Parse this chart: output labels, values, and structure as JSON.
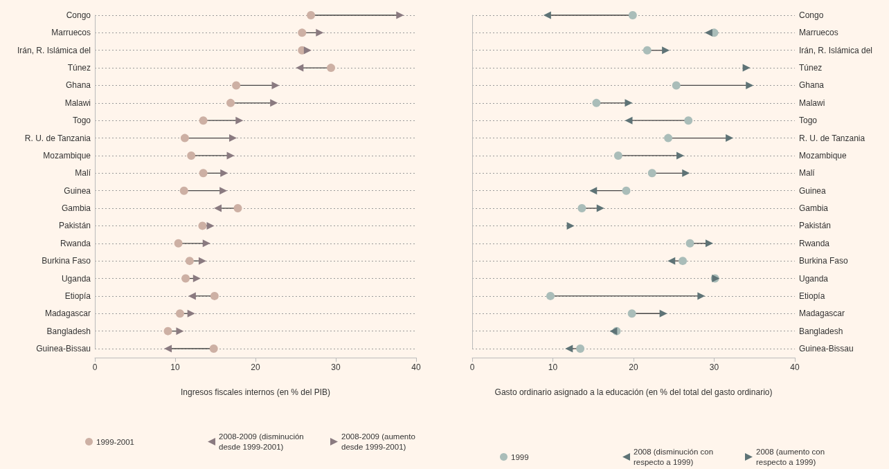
{
  "chart_data": [
    {
      "type": "scatter",
      "categories": [
        "Congo",
        "Marruecos",
        "Irán, R. Islámica del",
        "Túnez",
        "Ghana",
        "Malawi",
        "Togo",
        "R. U. de Tanzania",
        "Mozambique",
        "Malí",
        "Guinea",
        "Gambia",
        "Pakistán",
        "Rwanda",
        "Burkina Faso",
        "Uganda",
        "Etiopía",
        "Madagascar",
        "Bangladesh",
        "Guinea-Bissau"
      ],
      "xlabel": "Ingresos fiscales internos (en % del PIB)",
      "orientation": "horizontal",
      "xlim": [
        0,
        40
      ],
      "xticks": [
        0,
        10,
        20,
        30,
        40
      ],
      "grid": "y",
      "legend": "bottom",
      "series": [
        {
          "name": "1999-2001",
          "color": "#cdb0a4",
          "marker": "circle",
          "values": [
            26.9,
            25.8,
            25.8,
            29.4,
            17.6,
            16.9,
            13.5,
            11.2,
            12.0,
            13.5,
            11.1,
            17.8,
            13.4,
            10.4,
            11.8,
            11.3,
            14.9,
            10.6,
            9.1,
            14.8
          ]
        },
        {
          "name": "2008-2009 (disminución desde 1999-2001)",
          "color": "#8a7a80",
          "marker": "triangle",
          "values": [
            null,
            null,
            null,
            25.5,
            null,
            null,
            null,
            null,
            null,
            null,
            null,
            15.3,
            null,
            null,
            null,
            null,
            12.1,
            null,
            null,
            9.1
          ]
        },
        {
          "name": "2008-2009 (aumento desde 1999-2001)",
          "color": "#8a7a80",
          "marker": "triangle",
          "values": [
            38.0,
            28.0,
            26.5,
            null,
            22.5,
            22.3,
            18.0,
            17.2,
            16.9,
            16.1,
            16.0,
            null,
            14.4,
            13.9,
            13.4,
            12.7,
            null,
            12.0,
            10.6,
            null
          ]
        }
      ]
    },
    {
      "type": "scatter",
      "categories": [
        "Congo",
        "Marruecos",
        "Irán, R. Islámica del",
        "Túnez",
        "Ghana",
        "Malawi",
        "Togo",
        "R. U. de Tanzania",
        "Mozambique",
        "Malí",
        "Guinea",
        "Gambia",
        "Pakistán",
        "Rwanda",
        "Burkina Faso",
        "Uganda",
        "Etiopía",
        "Madagascar",
        "Bangladesh",
        "Guinea-Bissau"
      ],
      "xlabel": "Gasto ordinario asignado a la educación (en % del total del gasto ordinario)",
      "orientation": "horizontal",
      "xlim": [
        0,
        40
      ],
      "xticks": [
        0,
        10,
        20,
        30,
        40
      ],
      "grid": "y",
      "legend": "bottom",
      "series": [
        {
          "name": "1999",
          "color": "#aabdb9",
          "marker": "circle",
          "values": [
            19.9,
            30.0,
            21.7,
            null,
            25.3,
            15.4,
            26.8,
            24.3,
            18.1,
            22.3,
            19.1,
            13.6,
            null,
            27.0,
            26.1,
            30.1,
            9.7,
            19.8,
            17.9,
            13.4
          ]
        },
        {
          "name": "2008 (disminución con respecto a 1999)",
          "color": "#5e7376",
          "marker": "triangle",
          "values": [
            9.3,
            29.3,
            null,
            null,
            null,
            null,
            19.4,
            null,
            null,
            null,
            15.0,
            null,
            null,
            null,
            24.7,
            null,
            null,
            null,
            17.5,
            12.0
          ]
        },
        {
          "name": "2008 (aumento con respecto a 1999)",
          "color": "#5e7376",
          "marker": "triangle",
          "values": [
            null,
            null,
            24.0,
            34.0,
            34.4,
            19.4,
            null,
            31.9,
            25.8,
            26.5,
            null,
            15.9,
            12.2,
            29.4,
            null,
            30.2,
            28.4,
            23.7,
            null,
            null
          ]
        }
      ]
    }
  ]
}
